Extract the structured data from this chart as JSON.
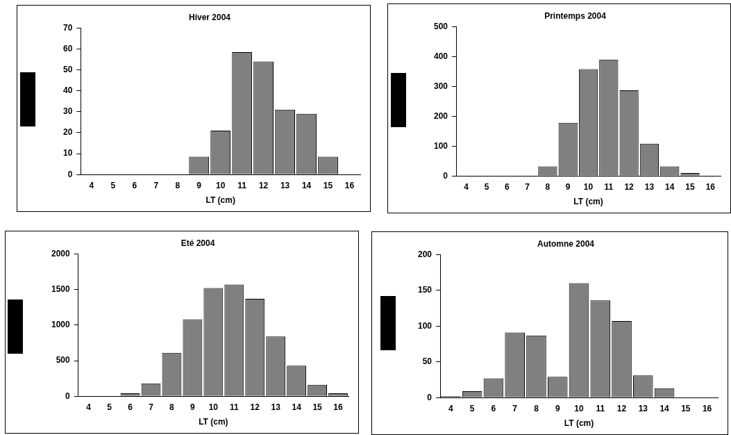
{
  "chart_data": [
    {
      "type": "bar",
      "title": "Hiver 2004",
      "xlabel": "LT (cm)",
      "categories": [
        "4",
        "5",
        "6",
        "7",
        "8",
        "9",
        "10",
        "11",
        "12",
        "13",
        "14",
        "15",
        "16"
      ],
      "values": [
        0,
        0,
        0,
        0,
        0,
        8.5,
        21,
        58.5,
        54,
        31,
        29,
        8.5,
        0
      ],
      "color": "#808080",
      "ylim": [
        0,
        70
      ],
      "yticks": [
        0,
        10,
        20,
        30,
        40,
        50,
        60,
        70
      ],
      "grid": false,
      "legend": false
    },
    {
      "type": "bar",
      "title": "Printemps 2004",
      "xlabel": "LT (cm)",
      "categories": [
        "4",
        "5",
        "6",
        "7",
        "8",
        "9",
        "10",
        "11",
        "12",
        "13",
        "14",
        "15",
        "16"
      ],
      "values": [
        0,
        0,
        0,
        0,
        32,
        178,
        358,
        390,
        287,
        108,
        32,
        10,
        0
      ],
      "color": "#808080",
      "ylim": [
        0,
        500
      ],
      "yticks": [
        0,
        100,
        200,
        300,
        400,
        500
      ],
      "grid": false,
      "legend": false
    },
    {
      "type": "bar",
      "title": "Eté 2004",
      "xlabel": "LT (cm)",
      "categories": [
        "4",
        "5",
        "6",
        "7",
        "8",
        "9",
        "10",
        "11",
        "12",
        "13",
        "14",
        "15",
        "16"
      ],
      "values": [
        0,
        0,
        40,
        180,
        610,
        1080,
        1520,
        1570,
        1370,
        840,
        430,
        160,
        40
      ],
      "color": "#808080",
      "ylim": [
        0,
        2000
      ],
      "yticks": [
        0,
        500,
        1000,
        1500,
        2000
      ],
      "grid": false,
      "legend": false
    },
    {
      "type": "bar",
      "title": "Automne 2004",
      "xlabel": "LT (cm)",
      "categories": [
        "4",
        "5",
        "6",
        "7",
        "8",
        "9",
        "10",
        "11",
        "12",
        "13",
        "14",
        "15",
        "16"
      ],
      "values": [
        2,
        9,
        27,
        91,
        87,
        29,
        160,
        136,
        107,
        31,
        13,
        0,
        0
      ],
      "color": "#808080",
      "ylim": [
        0,
        200
      ],
      "yticks": [
        0,
        50,
        100,
        150,
        200
      ],
      "grid": false,
      "legend": false
    }
  ]
}
